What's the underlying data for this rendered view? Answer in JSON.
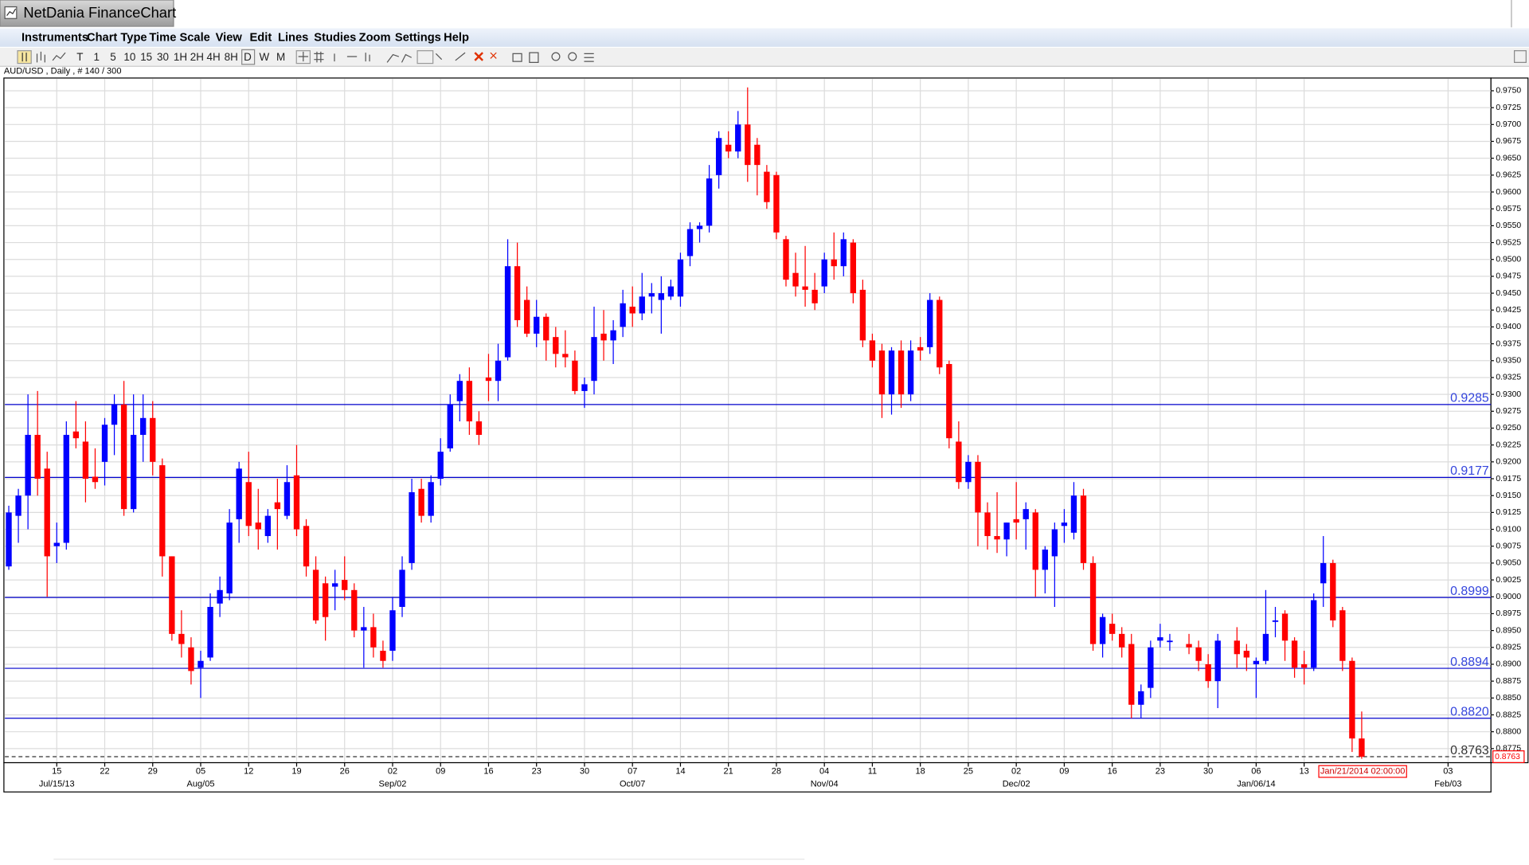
{
  "window": {
    "title": "NetDania FinanceChart",
    "menu": [
      "Instruments",
      "Chart Type",
      "Time Scale",
      "View",
      "Edit",
      "Lines",
      "Studies",
      "Zoom",
      "Settings",
      "Help"
    ],
    "toolbar": [
      "T",
      "1",
      "5",
      "10",
      "15",
      "30",
      "1H",
      "2H",
      "4H",
      "8H",
      "D",
      "W",
      "M"
    ],
    "info": "AUD/USD , Daily , # 140 / 300",
    "cursor_date": "Jan/21/2014 02:00:00"
  },
  "chart_data": {
    "type": "candlestick",
    "up_color": "#0000ff",
    "down_color": "#ff0000",
    "grid": true,
    "x": [
      "2013-07-08",
      "2013-07-09",
      "2013-07-10",
      "2013-07-11",
      "2013-07-12",
      "2013-07-15",
      "2013-07-16",
      "2013-07-17",
      "2013-07-18",
      "2013-07-19",
      "2013-07-22",
      "2013-07-23",
      "2013-07-24",
      "2013-07-25",
      "2013-07-26",
      "2013-07-29",
      "2013-07-30",
      "2013-07-31",
      "2013-08-01",
      "2013-08-02",
      "2013-08-05",
      "2013-08-06",
      "2013-08-07",
      "2013-08-08",
      "2013-08-09",
      "2013-08-12",
      "2013-08-13",
      "2013-08-14",
      "2013-08-15",
      "2013-08-16",
      "2013-08-19",
      "2013-08-20",
      "2013-08-21",
      "2013-08-22",
      "2013-08-23",
      "2013-08-26",
      "2013-08-27",
      "2013-08-28",
      "2013-08-29",
      "2013-08-30",
      "2013-09-02",
      "2013-09-03",
      "2013-09-04",
      "2013-09-05",
      "2013-09-06",
      "2013-09-09",
      "2013-09-10",
      "2013-09-11",
      "2013-09-12",
      "2013-09-13",
      "2013-09-16",
      "2013-09-17",
      "2013-09-18",
      "2013-09-19",
      "2013-09-20",
      "2013-09-23",
      "2013-09-24",
      "2013-09-25",
      "2013-09-26",
      "2013-09-27",
      "2013-09-30",
      "2013-10-01",
      "2013-10-02",
      "2013-10-03",
      "2013-10-04",
      "2013-10-07",
      "2013-10-08",
      "2013-10-09",
      "2013-10-10",
      "2013-10-11",
      "2013-10-14",
      "2013-10-15",
      "2013-10-16",
      "2013-10-17",
      "2013-10-18",
      "2013-10-21",
      "2013-10-22",
      "2013-10-23",
      "2013-10-24",
      "2013-10-25",
      "2013-10-28",
      "2013-10-29",
      "2013-10-30",
      "2013-10-31",
      "2013-11-01",
      "2013-11-04",
      "2013-11-05",
      "2013-11-06",
      "2013-11-07",
      "2013-11-08",
      "2013-11-11",
      "2013-11-12",
      "2013-11-13",
      "2013-11-14",
      "2013-11-15",
      "2013-11-18",
      "2013-11-19",
      "2013-11-20",
      "2013-11-21",
      "2013-11-22",
      "2013-11-25",
      "2013-11-26",
      "2013-11-27",
      "2013-11-28",
      "2013-11-29",
      "2013-12-02",
      "2013-12-03",
      "2013-12-04",
      "2013-12-05",
      "2013-12-06",
      "2013-12-09",
      "2013-12-10",
      "2013-12-11",
      "2013-12-12",
      "2013-12-13",
      "2013-12-16",
      "2013-12-17",
      "2013-12-18",
      "2013-12-19",
      "2013-12-20",
      "2013-12-23",
      "2013-12-24",
      "2013-12-26",
      "2013-12-27",
      "2013-12-30",
      "2013-12-31",
      "2014-01-02",
      "2014-01-03",
      "2014-01-06",
      "2014-01-07",
      "2014-01-08",
      "2014-01-09",
      "2014-01-10",
      "2014-01-13",
      "2014-01-14",
      "2014-01-15",
      "2014-01-16",
      "2014-01-17",
      "2014-01-20",
      "2014-01-21"
    ],
    "open": [
      0.9045,
      0.912,
      0.915,
      0.924,
      0.919,
      0.9075,
      0.908,
      0.9245,
      0.923,
      0.9178,
      0.92,
      0.9255,
      0.9285,
      0.913,
      0.924,
      0.9265,
      0.9195,
      0.906,
      0.8945,
      0.8925,
      0.8895,
      0.891,
      0.899,
      0.9005,
      0.9115,
      0.917,
      0.911,
      0.909,
      0.914,
      0.912,
      0.918,
      0.9105,
      0.904,
      0.902,
      0.9015,
      0.9025,
      0.901,
      0.895,
      0.8955,
      0.892,
      0.892,
      0.8985,
      0.905,
      0.916,
      0.912,
      0.9175,
      0.922,
      0.929,
      0.932,
      0.926,
      0.9325,
      0.932,
      0.9355,
      0.949,
      0.944,
      0.939,
      0.9415,
      0.9385,
      0.936,
      0.935,
      0.9305,
      0.932,
      0.939,
      0.938,
      0.94,
      0.943,
      0.942,
      0.9445,
      0.944,
      0.9445,
      0.9445,
      0.9505,
      0.9545,
      0.955,
      0.9625,
      0.967,
      0.966,
      0.97,
      0.967,
      0.963,
      0.9625,
      0.953,
      0.948,
      0.946,
      0.9455,
      0.946,
      0.95,
      0.949,
      0.9525,
      0.9455,
      0.938,
      0.9365,
      0.93,
      0.9365,
      0.93,
      0.937,
      0.937,
      0.944,
      0.9345,
      0.923,
      0.917,
      0.92,
      0.9125,
      0.909,
      0.9085,
      0.9115,
      0.9115,
      0.9125,
      0.904,
      0.906,
      0.9105,
      0.9095,
      0.915,
      0.905,
      0.893,
      0.896,
      0.8945,
      0.893,
      0.884,
      0.8865,
      0.8935,
      0.8935,
      0.893,
      0.8925,
      0.89,
      0.8875,
      0.8935,
      0.892,
      0.89,
      0.8905,
      0.8965,
      0.8975,
      0.8935,
      0.89,
      0.8895,
      0.902,
      0.905,
      0.898,
      0.8905,
      0.879
    ],
    "high": [
      0.9135,
      0.916,
      0.93,
      0.9305,
      0.9215,
      0.911,
      0.926,
      0.929,
      0.926,
      0.922,
      0.9265,
      0.93,
      0.932,
      0.93,
      0.93,
      0.929,
      0.9205,
      0.906,
      0.898,
      0.894,
      0.892,
      0.9005,
      0.903,
      0.913,
      0.92,
      0.9215,
      0.916,
      0.913,
      0.9175,
      0.9195,
      0.9225,
      0.9115,
      0.906,
      0.903,
      0.904,
      0.906,
      0.902,
      0.8985,
      0.8975,
      0.8935,
      0.9,
      0.906,
      0.9175,
      0.9175,
      0.918,
      0.9235,
      0.93,
      0.933,
      0.934,
      0.9275,
      0.936,
      0.9375,
      0.953,
      0.9525,
      0.946,
      0.944,
      0.942,
      0.94,
      0.9395,
      0.9365,
      0.9325,
      0.943,
      0.9425,
      0.941,
      0.9455,
      0.946,
      0.948,
      0.9465,
      0.9475,
      0.947,
      0.951,
      0.9555,
      0.9555,
      0.964,
      0.969,
      0.969,
      0.972,
      0.9755,
      0.968,
      0.964,
      0.963,
      0.9535,
      0.951,
      0.952,
      0.948,
      0.951,
      0.954,
      0.954,
      0.953,
      0.947,
      0.939,
      0.9375,
      0.937,
      0.938,
      0.938,
      0.9385,
      0.945,
      0.9445,
      0.935,
      0.926,
      0.921,
      0.921,
      0.914,
      0.9155,
      0.911,
      0.917,
      0.914,
      0.913,
      0.9075,
      0.911,
      0.913,
      0.917,
      0.916,
      0.906,
      0.8975,
      0.8975,
      0.8955,
      0.8945,
      0.887,
      0.8935,
      0.896,
      0.8945,
      0.8945,
      0.8935,
      0.8915,
      0.8945,
      0.8955,
      0.893,
      0.891,
      0.901,
      0.8985,
      0.898,
      0.894,
      0.892,
      0.9005,
      0.909,
      0.9055,
      0.8985,
      0.891,
      0.883
    ],
    "low": [
      0.904,
      0.908,
      0.91,
      0.915,
      0.9,
      0.905,
      0.907,
      0.922,
      0.914,
      0.916,
      0.9165,
      0.921,
      0.912,
      0.9125,
      0.92,
      0.918,
      0.903,
      0.8935,
      0.891,
      0.887,
      0.885,
      0.8905,
      0.897,
      0.8995,
      0.908,
      0.909,
      0.907,
      0.908,
      0.907,
      0.9115,
      0.909,
      0.903,
      0.896,
      0.8935,
      0.898,
      0.8995,
      0.894,
      0.8895,
      0.891,
      0.8895,
      0.8905,
      0.897,
      0.904,
      0.911,
      0.911,
      0.9165,
      0.9215,
      0.926,
      0.924,
      0.9225,
      0.929,
      0.929,
      0.935,
      0.94,
      0.9385,
      0.937,
      0.935,
      0.934,
      0.934,
      0.93,
      0.928,
      0.93,
      0.935,
      0.9345,
      0.9385,
      0.94,
      0.941,
      0.942,
      0.939,
      0.944,
      0.943,
      0.949,
      0.9525,
      0.954,
      0.9605,
      0.965,
      0.965,
      0.9615,
      0.9595,
      0.9575,
      0.953,
      0.946,
      0.9445,
      0.943,
      0.9425,
      0.945,
      0.947,
      0.9475,
      0.9435,
      0.937,
      0.934,
      0.9265,
      0.927,
      0.928,
      0.929,
      0.935,
      0.936,
      0.933,
      0.922,
      0.916,
      0.916,
      0.9075,
      0.907,
      0.9065,
      0.906,
      0.9085,
      0.907,
      0.9,
      0.9005,
      0.8985,
      0.908,
      0.9085,
      0.904,
      0.892,
      0.891,
      0.8935,
      0.891,
      0.882,
      0.882,
      0.885,
      0.8925,
      0.892,
      0.8915,
      0.889,
      0.8865,
      0.8835,
      0.8895,
      0.889,
      0.885,
      0.89,
      0.894,
      0.8905,
      0.888,
      0.887,
      0.889,
      0.8985,
      0.8955,
      0.889,
      0.877,
      0.876
    ],
    "close": [
      0.9125,
      0.915,
      0.924,
      0.9175,
      0.906,
      0.908,
      0.924,
      0.9235,
      0.9175,
      0.917,
      0.9255,
      0.9285,
      0.913,
      0.924,
      0.9265,
      0.92,
      0.906,
      0.8945,
      0.893,
      0.889,
      0.8905,
      0.8985,
      0.901,
      0.911,
      0.919,
      0.9105,
      0.91,
      0.912,
      0.913,
      0.917,
      0.91,
      0.9045,
      0.8965,
      0.897,
      0.902,
      0.901,
      0.895,
      0.8955,
      0.8925,
      0.8905,
      0.898,
      0.904,
      0.9155,
      0.912,
      0.917,
      0.9215,
      0.9285,
      0.932,
      0.926,
      0.924,
      0.932,
      0.935,
      0.949,
      0.941,
      0.939,
      0.9415,
      0.938,
      0.936,
      0.9355,
      0.9305,
      0.9315,
      0.9385,
      0.938,
      0.9395,
      0.9435,
      0.942,
      0.9445,
      0.945,
      0.945,
      0.946,
      0.95,
      0.9545,
      0.955,
      0.962,
      0.968,
      0.966,
      0.97,
      0.964,
      0.964,
      0.9585,
      0.954,
      0.947,
      0.946,
      0.9455,
      0.9435,
      0.95,
      0.949,
      0.953,
      0.945,
      0.938,
      0.935,
      0.93,
      0.9365,
      0.93,
      0.9365,
      0.9365,
      0.944,
      0.934,
      0.9235,
      0.917,
      0.92,
      0.9125,
      0.909,
      0.9085,
      0.911,
      0.911,
      0.913,
      0.904,
      0.907,
      0.91,
      0.911,
      0.915,
      0.905,
      0.893,
      0.897,
      0.8945,
      0.8925,
      0.884,
      0.886,
      0.8925,
      0.894,
      0.8935,
      0.8925,
      0.8905,
      0.8875,
      0.8935,
      0.8915,
      0.891,
      0.8905,
      0.8945,
      0.8965,
      0.8935,
      0.8895,
      0.8895,
      0.8995,
      0.905,
      0.8965,
      0.8905,
      0.879,
      0.8763
    ],
    "ylim": [
      0.8757,
      0.9766
    ],
    "yticks": [
      {
        "value": 0.8775,
        "label": "0.8775"
      },
      {
        "value": 0.88,
        "label": "0.8800"
      },
      {
        "value": 0.8825,
        "label": "0.8825"
      },
      {
        "value": 0.885,
        "label": "0.8850"
      },
      {
        "value": 0.8875,
        "label": "0.8875"
      },
      {
        "value": 0.89,
        "label": "0.8900"
      },
      {
        "value": 0.8925,
        "label": "0.8925"
      },
      {
        "value": 0.895,
        "label": "0.8950"
      },
      {
        "value": 0.8975,
        "label": "0.8975"
      },
      {
        "value": 0.9,
        "label": "0.9000"
      },
      {
        "value": 0.9025,
        "label": "0.9025"
      },
      {
        "value": 0.905,
        "label": "0.9050"
      },
      {
        "value": 0.9075,
        "label": "0.9075"
      },
      {
        "value": 0.91,
        "label": "0.9100"
      },
      {
        "value": 0.9125,
        "label": "0.9125"
      },
      {
        "value": 0.915,
        "label": "0.9150"
      },
      {
        "value": 0.9175,
        "label": "0.9175"
      },
      {
        "value": 0.92,
        "label": "0.9200"
      },
      {
        "value": 0.9225,
        "label": "0.9225"
      },
      {
        "value": 0.925,
        "label": "0.9250"
      },
      {
        "value": 0.9275,
        "label": "0.9275"
      },
      {
        "value": 0.93,
        "label": "0.9300"
      },
      {
        "value": 0.9325,
        "label": "0.9325"
      },
      {
        "value": 0.935,
        "label": "0.9350"
      },
      {
        "value": 0.9375,
        "label": "0.9375"
      },
      {
        "value": 0.94,
        "label": "0.9400"
      },
      {
        "value": 0.9425,
        "label": "0.9425"
      },
      {
        "value": 0.945,
        "label": "0.9450"
      },
      {
        "value": 0.9475,
        "label": "0.9475"
      },
      {
        "value": 0.95,
        "label": "0.9500"
      },
      {
        "value": 0.9525,
        "label": "0.9525"
      },
      {
        "value": 0.955,
        "label": "0.9550"
      },
      {
        "value": 0.9575,
        "label": "0.9575"
      },
      {
        "value": 0.96,
        "label": "0.9600"
      },
      {
        "value": 0.9625,
        "label": "0.9625"
      },
      {
        "value": 0.965,
        "label": "0.9650"
      },
      {
        "value": 0.9675,
        "label": "0.9675"
      },
      {
        "value": 0.97,
        "label": "0.9700"
      },
      {
        "value": 0.9725,
        "label": "0.9725"
      },
      {
        "value": 0.975,
        "label": "0.9750"
      }
    ],
    "xticks": [
      {
        "value": "2013-07-15",
        "label": "15"
      },
      {
        "value": "2013-07-22",
        "label": "22"
      },
      {
        "value": "2013-07-29",
        "label": "29"
      },
      {
        "value": "2013-08-05",
        "label": "05"
      },
      {
        "value": "2013-08-12",
        "label": "12"
      },
      {
        "value": "2013-08-19",
        "label": "19"
      },
      {
        "value": "2013-08-26",
        "label": "26"
      },
      {
        "value": "2013-09-02",
        "label": "02"
      },
      {
        "value": "2013-09-09",
        "label": "09"
      },
      {
        "value": "2013-09-16",
        "label": "16"
      },
      {
        "value": "2013-09-23",
        "label": "23"
      },
      {
        "value": "2013-09-30",
        "label": "30"
      },
      {
        "value": "2013-10-07",
        "label": "07"
      },
      {
        "value": "2013-10-14",
        "label": "14"
      },
      {
        "value": "2013-10-21",
        "label": "21"
      },
      {
        "value": "2013-10-28",
        "label": "28"
      },
      {
        "value": "2013-11-04",
        "label": "04"
      },
      {
        "value": "2013-11-11",
        "label": "11"
      },
      {
        "value": "2013-11-18",
        "label": "18"
      },
      {
        "value": "2013-11-25",
        "label": "25"
      },
      {
        "value": "2013-12-02",
        "label": "02"
      },
      {
        "value": "2013-12-09",
        "label": "09"
      },
      {
        "value": "2013-12-16",
        "label": "16"
      },
      {
        "value": "2013-12-23",
        "label": "23"
      },
      {
        "value": "2013-12-30",
        "label": "30"
      },
      {
        "value": "2014-01-06",
        "label": "06"
      },
      {
        "value": "2014-01-13",
        "label": "13"
      },
      {
        "value": "2014-02-03",
        "label": "03"
      }
    ],
    "xticks_major": [
      {
        "value": "2013-07-15",
        "label": "Jul/15/13"
      },
      {
        "value": "2013-08-05",
        "label": "Aug/05"
      },
      {
        "value": "2013-09-02",
        "label": "Sep/02"
      },
      {
        "value": "2013-10-07",
        "label": "Oct/07"
      },
      {
        "value": "2013-11-04",
        "label": "Nov/04"
      },
      {
        "value": "2013-12-02",
        "label": "Dec/02"
      },
      {
        "value": "2014-01-06",
        "label": "Jan/06/14"
      },
      {
        "value": "2014-02-03",
        "label": "Feb/03"
      }
    ],
    "hlines": [
      {
        "value": 0.9285,
        "label": "0.9285",
        "color": "#0000cc",
        "style": "solid"
      },
      {
        "value": 0.9177,
        "label": "0.9177",
        "color": "#0000cc",
        "style": "solid"
      },
      {
        "value": 0.8999,
        "label": "0.8999",
        "color": "#0000cc",
        "style": "solid"
      },
      {
        "value": 0.8894,
        "label": "0.8894",
        "color": "#0000cc",
        "style": "solid"
      },
      {
        "value": 0.882,
        "label": "0.8820",
        "color": "#0000cc",
        "style": "solid"
      },
      {
        "value": 0.8763,
        "label": "0.8763",
        "color": "#333333",
        "style": "dashed"
      }
    ]
  }
}
